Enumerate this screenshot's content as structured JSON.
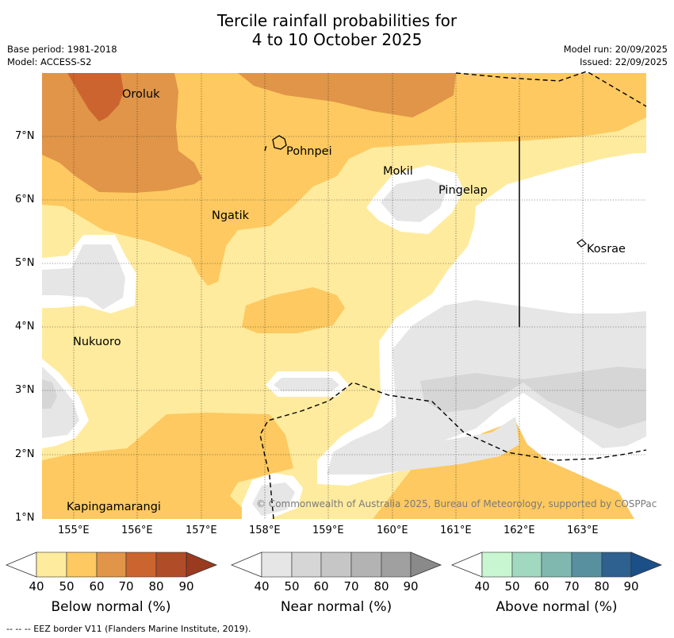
{
  "title_line1": "Tercile rainfall probabilities for",
  "title_line2": "4 to 10 October 2025",
  "base_period": "Base period: 1981-2018",
  "model": "Model: ACCESS-S2",
  "model_run": "Model run: 20/09/2025",
  "issued": "Issued: 22/09/2025",
  "lat_labels": [
    "7°N",
    "6°N",
    "5°N",
    "4°N",
    "3°N",
    "2°N",
    "1°N"
  ],
  "lon_labels": [
    "155°E",
    "156°E",
    "157°E",
    "158°E",
    "159°E",
    "160°E",
    "161°E",
    "162°E",
    "163°E"
  ],
  "places": {
    "oroluk": "Oroluk",
    "pohnpei": "Pohnpei",
    "mokil": "Mokil",
    "pingelap": "Pingelap",
    "ngatik": "Ngatik",
    "kosrae": "Kosrae",
    "nukuoro": "Nukuoro",
    "kapingamarangi": "Kapingamarangi"
  },
  "copyright": "© Commonwealth of Australia 2025, Bureau of Meteorology, supported by COSPPac",
  "colorbars": [
    {
      "title": "Below normal (%)",
      "ticks": [
        "40",
        "50",
        "60",
        "70",
        "80",
        "90"
      ],
      "colors": [
        "#ffffff",
        "#ffeb9e",
        "#fdc960",
        "#e09548",
        "#cc6430",
        "#b04d28",
        "#9a3a1e"
      ]
    },
    {
      "title": "Near normal (%)",
      "ticks": [
        "40",
        "50",
        "60",
        "70",
        "80",
        "90"
      ],
      "colors": [
        "#ffffff",
        "#e6e6e6",
        "#d6d6d6",
        "#c6c6c6",
        "#b3b3b3",
        "#a0a0a0",
        "#8a8a8a"
      ]
    },
    {
      "title": "Above normal (%)",
      "ticks": [
        "40",
        "50",
        "60",
        "70",
        "80",
        "90"
      ],
      "colors": [
        "#ffffff",
        "#c8f6d0",
        "#a0d8c0",
        "#80b8b0",
        "#5890a0",
        "#2e6090",
        "#1a4f88"
      ]
    }
  ],
  "footer": "--  --  -- EEZ border V11 (Flanders Marine Institute, 2019).",
  "colors": {
    "below_50": "#ffeb9e",
    "below_60": "#fdc960",
    "below_70": "#e09548",
    "below_80": "#cc6430",
    "near_50": "#e6e6e6",
    "near_60": "#d6d6d6"
  }
}
